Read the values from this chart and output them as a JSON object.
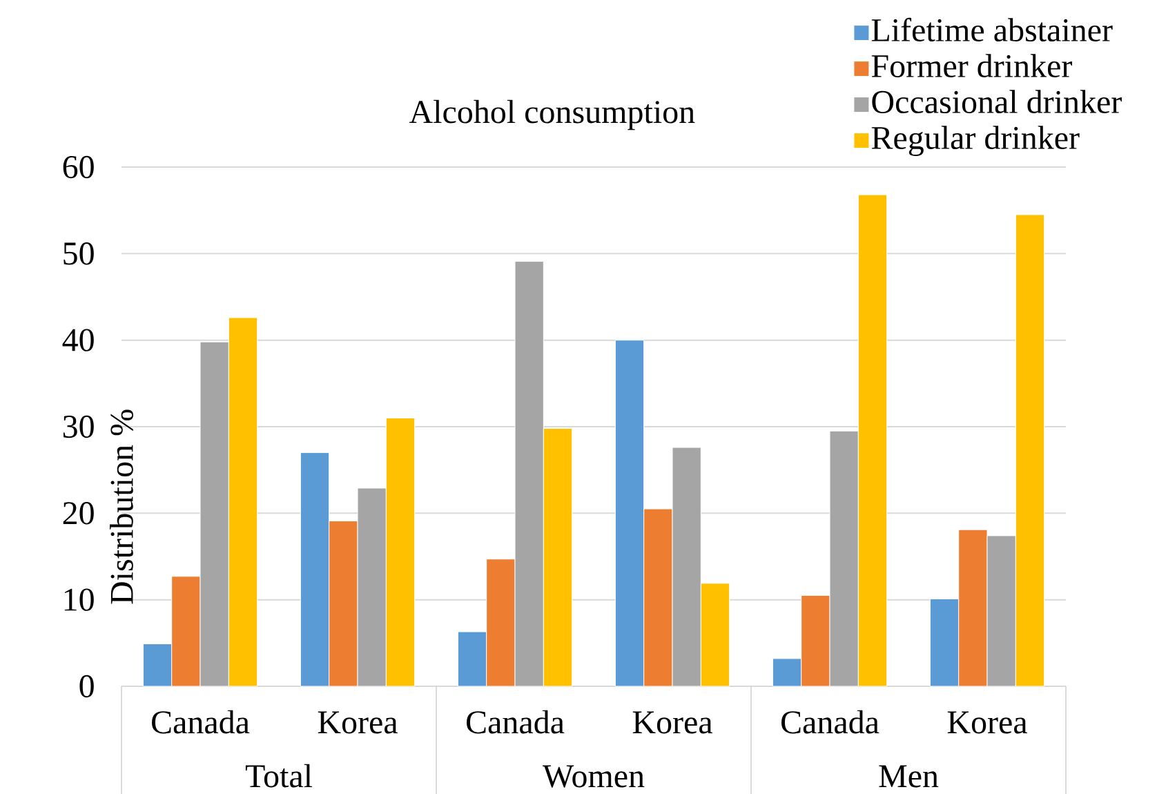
{
  "chart_data": {
    "type": "bar",
    "title": "Alcohol consumption",
    "ylabel": "Distribution %",
    "categories": [
      "Canada",
      "Korea",
      "Canada",
      "Korea",
      "Canada",
      "Korea"
    ],
    "annotations": [
      "Total",
      "Women",
      "Men"
    ],
    "series": [
      {
        "name": "Lifetime abstainer",
        "color": "#5b9bd5",
        "values": [
          4.9,
          27.0,
          6.3,
          40.0,
          3.2,
          10.1
        ]
      },
      {
        "name": "Former drinker",
        "color": "#ed7d31",
        "values": [
          12.7,
          19.1,
          14.7,
          20.5,
          10.5,
          18.1
        ]
      },
      {
        "name": "Occasional drinker",
        "color": "#a5a5a5",
        "values": [
          39.8,
          22.9,
          49.1,
          27.6,
          29.5,
          17.4
        ]
      },
      {
        "name": "Regular drinker",
        "color": "#ffc000",
        "values": [
          42.6,
          31.0,
          29.8,
          11.9,
          56.8,
          54.5
        ]
      }
    ],
    "ylim": [
      0,
      60
    ],
    "yticks": [
      0,
      10,
      20,
      30,
      40,
      50,
      60
    ],
    "grid": "y",
    "legend": "top right"
  }
}
